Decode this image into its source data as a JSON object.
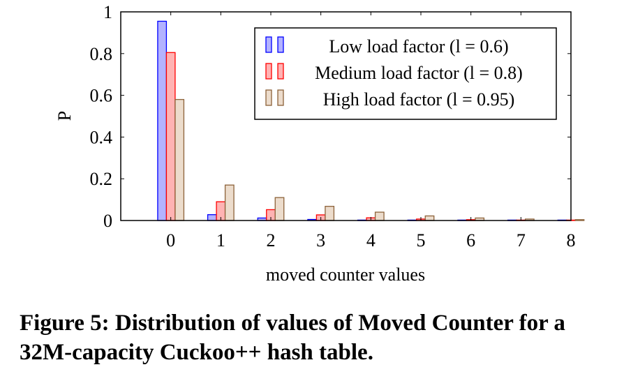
{
  "chart_data": {
    "type": "bar",
    "categories": [
      "0",
      "1",
      "2",
      "3",
      "4",
      "5",
      "6",
      "7",
      "8"
    ],
    "series": [
      {
        "name": "Low load factor (l = 0.6)",
        "values": [
          0.955,
          0.028,
          0.012,
          0.005,
          0.002,
          0.001,
          0.0005,
          0.0003,
          0.0002
        ],
        "fill": "#b3b3ff",
        "stroke": "#0000ff"
      },
      {
        "name": "Medium load factor (l = 0.8)",
        "values": [
          0.805,
          0.09,
          0.052,
          0.027,
          0.013,
          0.007,
          0.004,
          0.002,
          0.001
        ],
        "fill": "#ffb3b3",
        "stroke": "#ff0000"
      },
      {
        "name": "High load factor (l = 0.95)",
        "values": [
          0.58,
          0.17,
          0.11,
          0.068,
          0.04,
          0.022,
          0.012,
          0.007,
          0.004
        ],
        "fill": "#ecdccc",
        "stroke": "#8c6239"
      }
    ],
    "xlabel": "moved counter values",
    "ylabel": "P",
    "ylim": [
      0,
      1
    ],
    "xlim": [
      -1,
      8
    ],
    "yticks": [
      "0",
      "0.2",
      "0.4",
      "0.6",
      "0.8",
      "1"
    ],
    "grid": false,
    "legend_position": "top-right"
  },
  "caption": "Figure 5: Distribution of values of Moved Counter for a 32M-capacity Cuckoo++ hash table."
}
